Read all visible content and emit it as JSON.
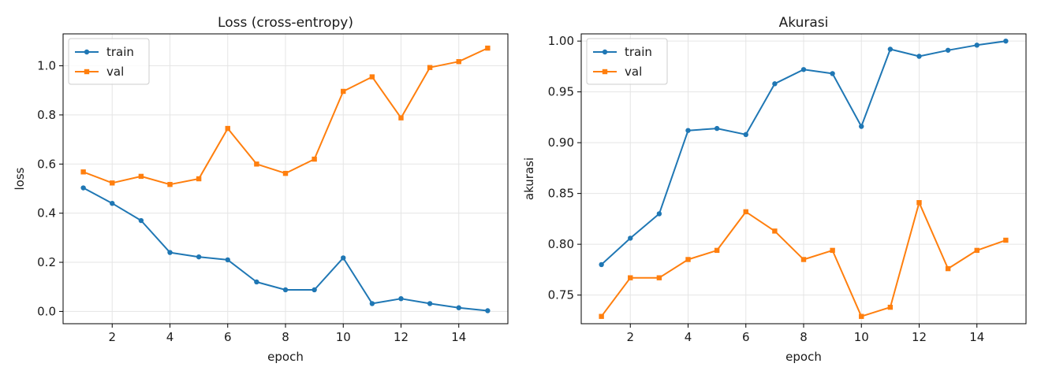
{
  "chart_data": [
    {
      "type": "line",
      "title": "Loss (cross-entropy)",
      "xlabel": "epoch",
      "ylabel": "loss",
      "x": [
        1,
        2,
        3,
        4,
        5,
        6,
        7,
        8,
        9,
        10,
        11,
        12,
        13,
        14,
        15
      ],
      "xlim": [
        0.3,
        15.7
      ],
      "ylim": [
        -0.05,
        1.13
      ],
      "xticks": [
        2,
        4,
        6,
        8,
        10,
        12,
        14
      ],
      "yticks": [
        0.0,
        0.2,
        0.4,
        0.6,
        0.8,
        1.0
      ],
      "ytick_labels": [
        "0.0",
        "0.2",
        "0.4",
        "0.6",
        "0.8",
        "1.0"
      ],
      "grid": true,
      "legend_position": "top-left",
      "series": [
        {
          "name": "train",
          "color": "#1f77b4",
          "marker": "circle",
          "values": [
            0.503,
            0.44,
            0.37,
            0.24,
            0.222,
            0.21,
            0.12,
            0.088,
            0.088,
            0.218,
            0.032,
            0.052,
            0.032,
            0.015,
            0.003
          ]
        },
        {
          "name": "val",
          "color": "#ff7f0e",
          "marker": "square",
          "values": [
            0.568,
            0.523,
            0.55,
            0.517,
            0.54,
            0.745,
            0.6,
            0.562,
            0.62,
            0.896,
            0.955,
            0.788,
            0.993,
            1.017,
            1.072
          ]
        }
      ]
    },
    {
      "type": "line",
      "title": "Akurasi",
      "xlabel": "epoch",
      "ylabel": "akurasi",
      "x": [
        1,
        2,
        3,
        4,
        5,
        6,
        7,
        8,
        9,
        10,
        11,
        12,
        13,
        14,
        15
      ],
      "xlim": [
        0.3,
        15.7
      ],
      "ylim": [
        0.7218,
        1.0071
      ],
      "xticks": [
        2,
        4,
        6,
        8,
        10,
        12,
        14
      ],
      "yticks": [
        0.75,
        0.8,
        0.85,
        0.9,
        0.95,
        1.0
      ],
      "ytick_labels": [
        "0.75",
        "0.80",
        "0.85",
        "0.90",
        "0.95",
        "1.00"
      ],
      "grid": true,
      "legend_position": "top-left",
      "series": [
        {
          "name": "train",
          "color": "#1f77b4",
          "marker": "circle",
          "values": [
            0.78,
            0.806,
            0.83,
            0.912,
            0.914,
            0.908,
            0.958,
            0.972,
            0.968,
            0.916,
            0.992,
            0.985,
            0.991,
            0.996,
            1.0
          ]
        },
        {
          "name": "val",
          "color": "#ff7f0e",
          "marker": "square",
          "values": [
            0.729,
            0.767,
            0.767,
            0.785,
            0.794,
            0.832,
            0.813,
            0.785,
            0.794,
            0.729,
            0.738,
            0.841,
            0.776,
            0.794,
            0.804
          ]
        }
      ]
    }
  ]
}
